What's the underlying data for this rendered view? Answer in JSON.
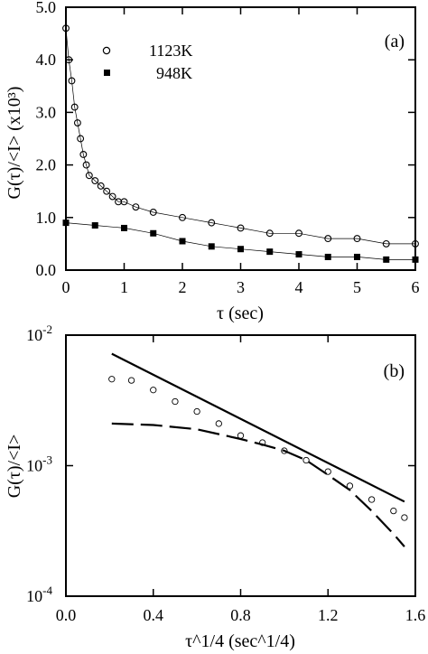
{
  "chart_data": [
    {
      "type": "scatter",
      "panel": "(a)",
      "ylabel": "G(τ)/<I> (x10³)",
      "xlabel": "τ (sec)",
      "xlim": [
        0,
        6
      ],
      "ylim": [
        0,
        5
      ],
      "xticks": [
        "0",
        "1",
        "2",
        "3",
        "4",
        "5",
        "6"
      ],
      "yticks": [
        "0.0",
        "1.0",
        "2.0",
        "3.0",
        "4.0",
        "5.0"
      ],
      "legend_position": "top-left",
      "series": [
        {
          "name": "1123K",
          "marker": "open-circle",
          "connected": true,
          "x": [
            0.0,
            0.05,
            0.1,
            0.15,
            0.2,
            0.25,
            0.3,
            0.35,
            0.4,
            0.5,
            0.6,
            0.7,
            0.8,
            0.9,
            1.0,
            1.2,
            1.5,
            2.0,
            2.5,
            3.0,
            3.5,
            4.0,
            4.5,
            5.0,
            5.5,
            6.0
          ],
          "y": [
            4.6,
            4.0,
            3.6,
            3.1,
            2.8,
            2.5,
            2.2,
            2.0,
            1.8,
            1.7,
            1.6,
            1.5,
            1.4,
            1.3,
            1.3,
            1.2,
            1.1,
            1.0,
            0.9,
            0.8,
            0.7,
            0.7,
            0.6,
            0.6,
            0.5,
            0.5
          ]
        },
        {
          "name": "948K",
          "marker": "filled-square",
          "connected": true,
          "x": [
            0.0,
            0.5,
            1.0,
            1.5,
            2.0,
            2.5,
            3.0,
            3.5,
            4.0,
            4.5,
            5.0,
            5.5,
            6.0
          ],
          "y": [
            0.9,
            0.85,
            0.8,
            0.7,
            0.55,
            0.45,
            0.4,
            0.35,
            0.3,
            0.25,
            0.25,
            0.2,
            0.2
          ]
        }
      ]
    },
    {
      "type": "scatter",
      "panel": "(b)",
      "ylabel": "G(τ)/<I>",
      "xlabel": "τ^1/4 (sec^1/4)",
      "xlim": [
        0,
        1.6
      ],
      "ylim": [
        0.0001,
        0.01
      ],
      "yscale": "log",
      "xticks": [
        "0.0",
        "0.4",
        "0.8",
        "1.2",
        "1.6"
      ],
      "yticks": [
        "10-4",
        "10-3",
        "10-2"
      ],
      "series": [
        {
          "marker": "open-circle",
          "x": [
            0.21,
            0.3,
            0.4,
            0.5,
            0.6,
            0.7,
            0.8,
            0.9,
            1.0,
            1.1,
            1.2,
            1.3,
            1.4,
            1.5,
            1.55
          ],
          "y": [
            0.0046,
            0.0045,
            0.0038,
            0.0031,
            0.0026,
            0.0021,
            0.0017,
            0.0015,
            0.0013,
            0.0011,
            0.0009,
            0.0007,
            0.00055,
            0.00045,
            0.0004
          ]
        },
        {
          "style": "solid",
          "x": [
            0.21,
            1.55
          ],
          "y": [
            0.0072,
            0.00053
          ]
        },
        {
          "style": "dashed",
          "x": [
            0.21,
            0.4,
            0.6,
            0.8,
            0.9,
            1.0,
            1.1,
            1.2,
            1.3,
            1.4,
            1.5,
            1.55
          ],
          "y": [
            0.0021,
            0.00205,
            0.0019,
            0.0016,
            0.00145,
            0.0013,
            0.0011,
            0.00085,
            0.00065,
            0.00045,
            0.0003,
            0.00024
          ]
        }
      ]
    }
  ]
}
